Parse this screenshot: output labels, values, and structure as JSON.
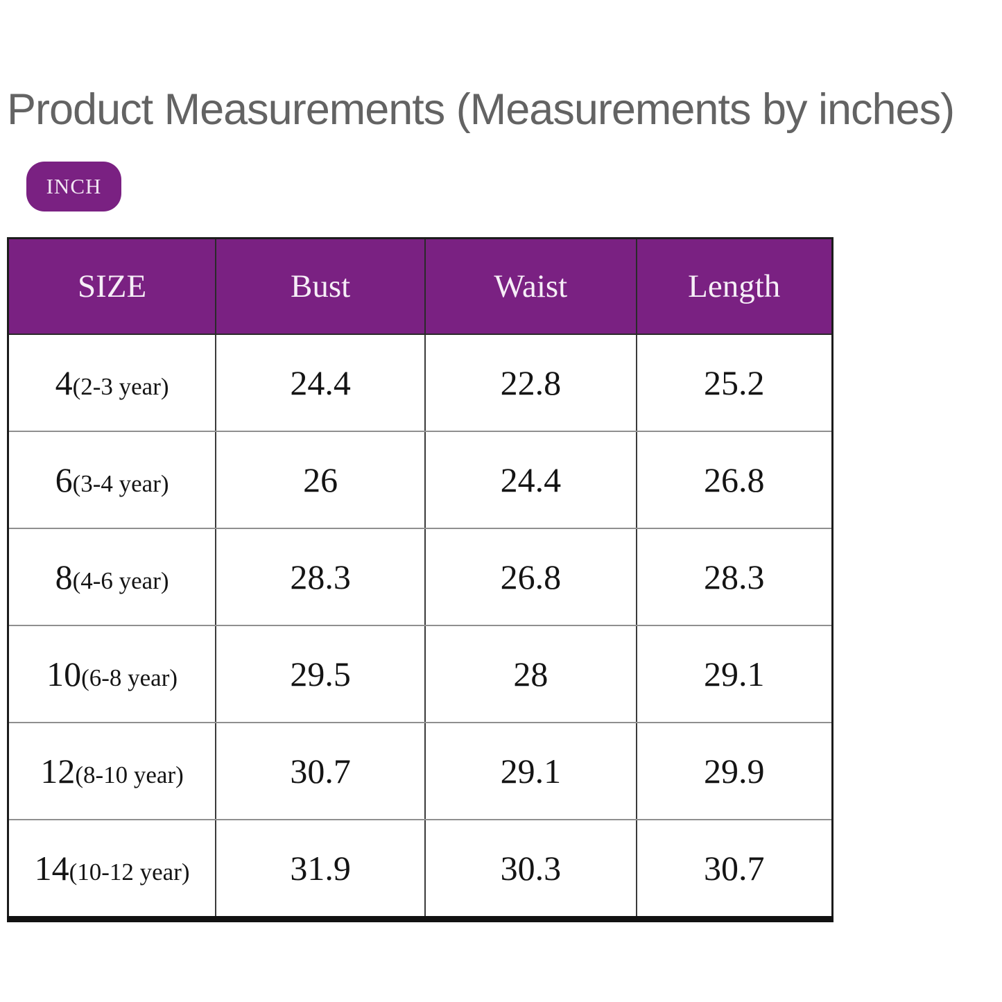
{
  "title": "Product Measurements (Measurements by inches)",
  "unit_badge": {
    "label": "INCH"
  },
  "colors": {
    "accent_purple": "#7A2182",
    "title_gray": "#636363",
    "cell_text": "#141414"
  },
  "chart_data": {
    "type": "table",
    "title": "Product Measurements (Measurements by inches)",
    "unit": "inches",
    "columns": [
      "SIZE",
      "Bust",
      "Waist",
      "Length"
    ],
    "header": {
      "size": "SIZE",
      "bust": "Bust",
      "waist": "Waist",
      "length": "Length"
    },
    "rows": [
      {
        "size": "4",
        "age": "(2-3 year)",
        "bust": "24.4",
        "waist": "22.8",
        "length": "25.2"
      },
      {
        "size": "6",
        "age": "(3-4 year)",
        "bust": "26",
        "waist": "24.4",
        "length": "26.8"
      },
      {
        "size": "8",
        "age": "(4-6 year)",
        "bust": "28.3",
        "waist": "26.8",
        "length": "28.3"
      },
      {
        "size": "10",
        "age": "(6-8 year)",
        "bust": "29.5",
        "waist": "28",
        "length": "29.1"
      },
      {
        "size": "12",
        "age": "(8-10 year)",
        "bust": "30.7",
        "waist": "29.1",
        "length": "29.9"
      },
      {
        "size": "14",
        "age": "(10-12 year)",
        "bust": "31.9",
        "waist": "30.3",
        "length": "30.7"
      }
    ]
  }
}
